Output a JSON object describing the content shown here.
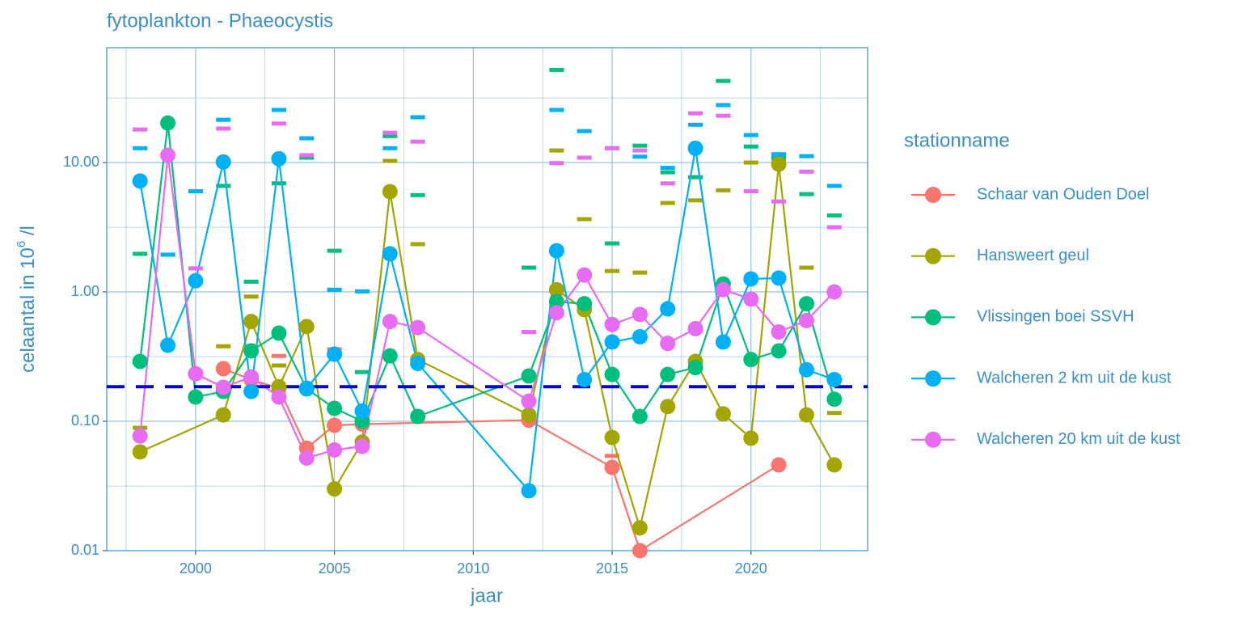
{
  "chart_data": {
    "type": "line",
    "title": "fytoplankton - Phaeocystis",
    "x_label": "jaar",
    "y_label": {
      "text": "celaantal in  10",
      "sup": "6",
      "after": " /l"
    },
    "legend_title": "stationname",
    "legend_position": "right",
    "log_y": true,
    "grid": true,
    "xlim": [
      1996.8,
      2024.2
    ],
    "xticks": [
      2000,
      2005,
      2010,
      2015,
      2020
    ],
    "x_minor_ticks": [
      1997.5,
      2002.5,
      2007.5,
      2012.5,
      2017.5,
      2022.5
    ],
    "ylim": [
      0.01,
      77.2
    ],
    "yticks": [
      {
        "value": 0.01,
        "label": "0.01"
      },
      {
        "value": 0.1,
        "label": "0.10"
      },
      {
        "value": 1,
        "label": "1.00"
      },
      {
        "value": 10,
        "label": "10.00"
      }
    ],
    "y_minor_ticks": [
      0.0316,
      0.316,
      3.16,
      31.6
    ],
    "reference_line": {
      "value": 0.185,
      "color": "#0000ee"
    },
    "series": [
      {
        "name": "Schaar van Ouden Doel",
        "color": "#F8766D",
        "x": [
          2001,
          2002,
          2003,
          2004,
          2005,
          2006,
          2012,
          2015,
          2016,
          2021
        ],
        "values": [
          0.255,
          0.21,
          0.18,
          0.062,
          0.093,
          0.095,
          0.102,
          0.044,
          0.01,
          0.046
        ],
        "dash_x": [
          2003,
          2005,
          2015
        ],
        "dash_values": [
          0.32,
          0.36,
          0.054
        ]
      },
      {
        "name": "Hansweert geul",
        "color": "#A3A500",
        "x": [
          1998,
          2001,
          2002,
          2003,
          2004,
          2005,
          2006,
          2007,
          2008,
          2012,
          2013,
          2014,
          2015,
          2016,
          2017,
          2018,
          2019,
          2020,
          2021,
          2022,
          2023
        ],
        "values": [
          0.058,
          0.112,
          0.59,
          0.185,
          0.54,
          0.03,
          0.069,
          5.96,
          0.3,
          0.112,
          1.04,
          0.73,
          0.075,
          0.015,
          0.13,
          0.29,
          0.114,
          0.074,
          9.7,
          0.112,
          0.046
        ],
        "dash_x": [
          1998,
          2001,
          2002,
          2003,
          2007,
          2008,
          2013,
          2014,
          2015,
          2016,
          2017,
          2018,
          2019,
          2020,
          2021,
          2022,
          2023
        ],
        "dash_values": [
          0.089,
          0.38,
          0.92,
          0.27,
          10.3,
          2.34,
          12.4,
          3.65,
          1.45,
          1.41,
          4.87,
          5.1,
          6.1,
          10,
          10.7,
          1.54,
          0.116
        ]
      },
      {
        "name": "Vlissingen boei SSVH",
        "color": "#00BF7D",
        "x": [
          1998,
          1999,
          2000,
          2001,
          2002,
          2003,
          2004,
          2005,
          2006,
          2007,
          2008,
          2012,
          2013,
          2014,
          2015,
          2016,
          2017,
          2018,
          2019,
          2020,
          2021,
          2022,
          2023
        ],
        "values": [
          0.29,
          20.2,
          0.154,
          0.17,
          0.35,
          0.48,
          0.178,
          0.126,
          0.1,
          0.32,
          0.109,
          0.224,
          0.84,
          0.81,
          0.23,
          0.109,
          0.23,
          0.26,
          1.15,
          0.3,
          0.35,
          0.81,
          0.148
        ],
        "dash_x": [
          1998,
          2001,
          2002,
          2003,
          2004,
          2005,
          2006,
          2007,
          2008,
          2012,
          2013,
          2015,
          2016,
          2017,
          2018,
          2019,
          2020,
          2021,
          2022,
          2023
        ],
        "dash_values": [
          1.97,
          6.6,
          1.2,
          6.9,
          10.9,
          2.08,
          0.24,
          16,
          5.6,
          1.54,
          52,
          2.37,
          13.5,
          8.4,
          7.7,
          42.7,
          13.3,
          10.9,
          5.7,
          3.9
        ]
      },
      {
        "name": "Walcheren 2 km uit de kust",
        "color": "#00B0F6",
        "x": [
          1998,
          1999,
          2000,
          2001,
          2002,
          2003,
          2004,
          2005,
          2006,
          2007,
          2008,
          2012,
          2013,
          2014,
          2015,
          2016,
          2017,
          2018,
          2019,
          2020,
          2021,
          2022,
          2023
        ],
        "values": [
          7.2,
          0.387,
          1.22,
          10.1,
          0.17,
          10.7,
          0.18,
          0.33,
          0.12,
          1.97,
          0.28,
          0.029,
          2.08,
          0.21,
          0.41,
          0.45,
          0.74,
          12.9,
          0.41,
          1.26,
          1.28,
          0.25,
          0.21
        ],
        "dash_x": [
          1998,
          1999,
          2000,
          2001,
          2003,
          2004,
          2005,
          2006,
          2007,
          2008,
          2013,
          2014,
          2015,
          2016,
          2017,
          2018,
          2019,
          2020,
          2021,
          2022,
          2023
        ],
        "dash_values": [
          12.9,
          1.94,
          6,
          21.4,
          25.5,
          15.4,
          1.04,
          1.01,
          12.9,
          22.4,
          25.5,
          17.5,
          12.9,
          11.1,
          9.1,
          19.6,
          27.8,
          16.3,
          11.6,
          11.2,
          6.6
        ]
      },
      {
        "name": "Walcheren 20 km uit de kust",
        "color": "#E76BF3",
        "x": [
          1998,
          1999,
          2000,
          2001,
          2002,
          2003,
          2004,
          2005,
          2006,
          2007,
          2008,
          2012,
          2013,
          2014,
          2015,
          2016,
          2017,
          2018,
          2019,
          2020,
          2021,
          2022,
          2023
        ],
        "values": [
          0.077,
          11.4,
          0.233,
          0.183,
          0.22,
          0.154,
          0.052,
          0.06,
          0.064,
          0.59,
          0.53,
          0.143,
          0.69,
          1.35,
          0.56,
          0.67,
          0.4,
          0.52,
          1.04,
          0.88,
          0.49,
          0.6,
          1.0
        ],
        "dash_x": [
          1998,
          2000,
          2001,
          2003,
          2004,
          2007,
          2008,
          2012,
          2013,
          2014,
          2015,
          2016,
          2017,
          2018,
          2019,
          2020,
          2021,
          2022,
          2023
        ],
        "dash_values": [
          18,
          1.52,
          18.3,
          20,
          11.4,
          17,
          14.5,
          0.49,
          9.9,
          10.9,
          12.9,
          12.4,
          6.9,
          24,
          23,
          6,
          5,
          8.5,
          3.16
        ]
      }
    ]
  }
}
